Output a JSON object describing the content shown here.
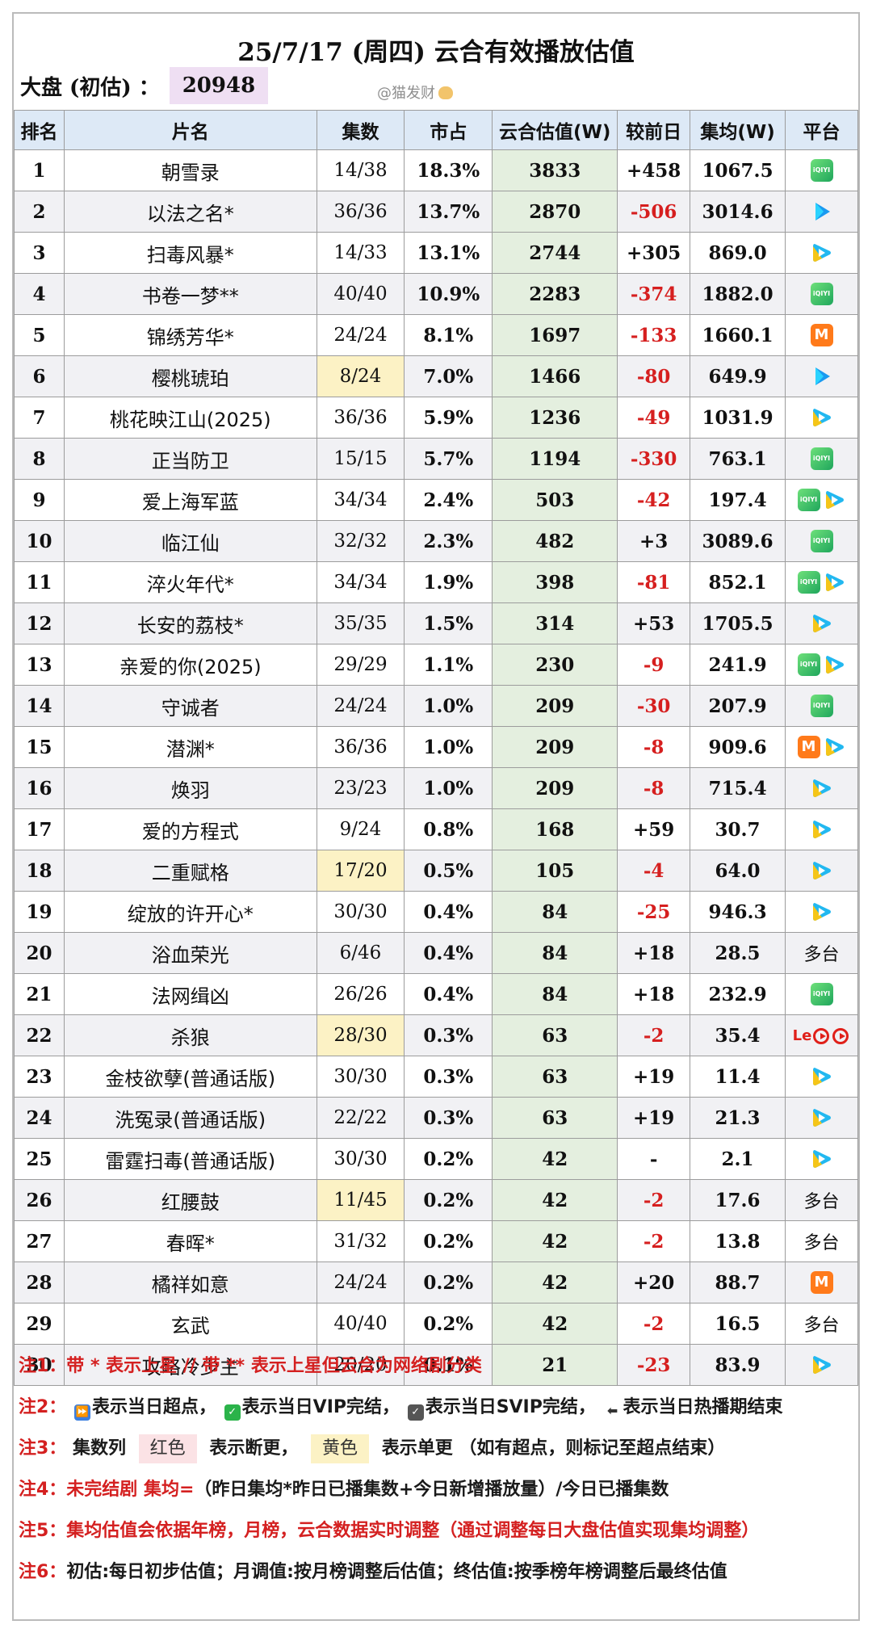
{
  "title": "25/7/17 (周四) 云合有效播放估值",
  "summary": {
    "label": "大盘 (初估) ：",
    "value": "20948"
  },
  "watermark": "@猫发财",
  "columns": [
    "排名",
    "片名",
    "集数",
    "市占",
    "云合估值(W)",
    "较前日",
    "集均(W)",
    "平台"
  ],
  "rows": [
    {
      "rank": "1",
      "name": "朝雪录",
      "episodes": "14/38",
      "share": "18.3%",
      "estimate": "3833",
      "change": "+458",
      "avg": "1067.5",
      "platform": [
        "iqiyi"
      ]
    },
    {
      "rank": "2",
      "name": "以法之名*",
      "episodes": "36/36",
      "share": "13.7%",
      "estimate": "2870",
      "change": "-506",
      "avg": "3014.6",
      "platform": [
        "youku"
      ]
    },
    {
      "rank": "3",
      "name": "扫毒风暴*",
      "episodes": "14/33",
      "share": "13.1%",
      "estimate": "2744",
      "change": "+305",
      "avg": "869.0",
      "platform": [
        "tencent"
      ]
    },
    {
      "rank": "4",
      "name": "书卷一梦**",
      "episodes": "40/40",
      "share": "10.9%",
      "estimate": "2283",
      "change": "-374",
      "avg": "1882.0",
      "platform": [
        "iqiyi"
      ]
    },
    {
      "rank": "5",
      "name": "锦绣芳华*",
      "episodes": "24/24",
      "share": "8.1%",
      "estimate": "1697",
      "change": "-133",
      "avg": "1660.1",
      "platform": [
        "mgtv"
      ]
    },
    {
      "rank": "6",
      "name": "樱桃琥珀",
      "episodes": "8/24",
      "episode_mark": "yellow",
      "share": "7.0%",
      "estimate": "1466",
      "change": "-80",
      "avg": "649.9",
      "platform": [
        "youku"
      ]
    },
    {
      "rank": "7",
      "name": "桃花映江山(2025)",
      "episodes": "36/36",
      "share": "5.9%",
      "estimate": "1236",
      "change": "-49",
      "avg": "1031.9",
      "platform": [
        "tencent"
      ]
    },
    {
      "rank": "8",
      "name": "正当防卫",
      "episodes": "15/15",
      "share": "5.7%",
      "estimate": "1194",
      "change": "-330",
      "avg": "763.1",
      "platform": [
        "iqiyi"
      ]
    },
    {
      "rank": "9",
      "name": "爱上海军蓝",
      "episodes": "34/34",
      "share": "2.4%",
      "estimate": "503",
      "change": "-42",
      "avg": "197.4",
      "platform": [
        "iqiyi",
        "tencent"
      ]
    },
    {
      "rank": "10",
      "name": "临江仙",
      "episodes": "32/32",
      "share": "2.3%",
      "estimate": "482",
      "change": "+3",
      "avg": "3089.6",
      "platform": [
        "iqiyi"
      ]
    },
    {
      "rank": "11",
      "name": "淬火年代*",
      "episodes": "34/34",
      "share": "1.9%",
      "estimate": "398",
      "change": "-81",
      "avg": "852.1",
      "platform": [
        "iqiyi",
        "tencent"
      ]
    },
    {
      "rank": "12",
      "name": "长安的荔枝*",
      "episodes": "35/35",
      "share": "1.5%",
      "estimate": "314",
      "change": "+53",
      "avg": "1705.5",
      "platform": [
        "tencent"
      ]
    },
    {
      "rank": "13",
      "name": "亲爱的你(2025)",
      "episodes": "29/29",
      "share": "1.1%",
      "estimate": "230",
      "change": "-9",
      "avg": "241.9",
      "platform": [
        "iqiyi",
        "tencent"
      ]
    },
    {
      "rank": "14",
      "name": "守诚者",
      "episodes": "24/24",
      "share": "1.0%",
      "estimate": "209",
      "change": "-30",
      "avg": "207.9",
      "platform": [
        "iqiyi"
      ]
    },
    {
      "rank": "15",
      "name": "潜渊*",
      "episodes": "36/36",
      "share": "1.0%",
      "estimate": "209",
      "change": "-8",
      "avg": "909.6",
      "platform": [
        "mgtv",
        "tencent"
      ]
    },
    {
      "rank": "16",
      "name": "焕羽",
      "episodes": "23/23",
      "share": "1.0%",
      "estimate": "209",
      "change": "-8",
      "avg": "715.4",
      "platform": [
        "tencent"
      ]
    },
    {
      "rank": "17",
      "name": "爱的方程式",
      "episodes": "9/24",
      "share": "0.8%",
      "estimate": "168",
      "change": "+59",
      "avg": "30.7",
      "platform": [
        "tencent"
      ]
    },
    {
      "rank": "18",
      "name": "二重赋格",
      "episodes": "17/20",
      "episode_mark": "yellow",
      "share": "0.5%",
      "estimate": "105",
      "change": "-4",
      "avg": "64.0",
      "platform": [
        "tencent"
      ]
    },
    {
      "rank": "19",
      "name": "绽放的许开心*",
      "episodes": "30/30",
      "share": "0.4%",
      "estimate": "84",
      "change": "-25",
      "avg": "946.3",
      "platform": [
        "tencent"
      ]
    },
    {
      "rank": "20",
      "name": "浴血荣光",
      "episodes": "6/46",
      "share": "0.4%",
      "estimate": "84",
      "change": "+18",
      "avg": "28.5",
      "platform": [
        "text"
      ],
      "platform_text": "多台"
    },
    {
      "rank": "21",
      "name": "法网缉凶",
      "episodes": "26/26",
      "share": "0.4%",
      "estimate": "84",
      "change": "+18",
      "avg": "232.9",
      "platform": [
        "iqiyi"
      ]
    },
    {
      "rank": "22",
      "name": "杀狼",
      "episodes": "28/30",
      "episode_mark": "yellow",
      "share": "0.3%",
      "estimate": "63",
      "change": "-2",
      "avg": "35.4",
      "platform": [
        "letv"
      ]
    },
    {
      "rank": "23",
      "name": "金枝欲孽(普通话版)",
      "episodes": "30/30",
      "share": "0.3%",
      "estimate": "63",
      "change": "+19",
      "avg": "11.4",
      "platform": [
        "tencent"
      ]
    },
    {
      "rank": "24",
      "name": "洗冤录(普通话版)",
      "episodes": "22/22",
      "share": "0.3%",
      "estimate": "63",
      "change": "+19",
      "avg": "21.3",
      "platform": [
        "tencent"
      ]
    },
    {
      "rank": "25",
      "name": "雷霆扫毒(普通话版)",
      "episodes": "30/30",
      "share": "0.2%",
      "estimate": "42",
      "change": "-",
      "avg": "2.1",
      "platform": [
        "tencent"
      ]
    },
    {
      "rank": "26",
      "name": "红腰鼓",
      "episodes": "11/45",
      "episode_mark": "yellow",
      "share": "0.2%",
      "estimate": "42",
      "change": "-2",
      "avg": "17.6",
      "platform": [
        "text"
      ],
      "platform_text": "多台"
    },
    {
      "rank": "27",
      "name": "春晖*",
      "episodes": "31/32",
      "share": "0.2%",
      "estimate": "42",
      "change": "-2",
      "avg": "13.8",
      "platform": [
        "text"
      ],
      "platform_text": "多台"
    },
    {
      "rank": "28",
      "name": "橘祥如意",
      "episodes": "24/24",
      "share": "0.2%",
      "estimate": "42",
      "change": "+20",
      "avg": "88.7",
      "platform": [
        "mgtv"
      ]
    },
    {
      "rank": "29",
      "name": "玄武",
      "episodes": "40/40",
      "share": "0.2%",
      "estimate": "42",
      "change": "-2",
      "avg": "16.5",
      "platform": [
        "text"
      ],
      "platform_text": "多台"
    },
    {
      "rank": "30",
      "name": "攻略冷少主",
      "episodes": "20/20",
      "share": "0.1%",
      "estimate": "21",
      "change": "-23",
      "avg": "83.9",
      "platform": [
        "tencent"
      ]
    }
  ],
  "icons": {
    "iqiyi": "iqiyi-icon",
    "youku": "youku-icon",
    "tencent": "tencent-video-icon",
    "mgtv": "mgtv-icon",
    "letv": "letv-icon"
  },
  "colors": {
    "negative": "#d61f1f",
    "estimate_bg": "#e4efdf",
    "header_bg": "#dde9f6",
    "yellow_mark": "#fcf2c5",
    "red_mark": "#fbe2e5"
  },
  "notes": {
    "n1": "注1：带 * 表示上星 // 带 ** 表示上星但云合为网络剧分类",
    "n2_prefix": "注2：",
    "n2_a": "表示当日超点，",
    "n2_b": "表示当日VIP完结，",
    "n2_c": "表示当日SVIP完结，",
    "n2_d": "表示当日热播期结束",
    "n2_end_glyph": "END",
    "n3_prefix": "注3：",
    "n3_col": "集数列",
    "n3_red": "红色",
    "n3_mid": "表示断更，",
    "n3_yellow": "黄色",
    "n3_tail": "表示单更 （如有超点，则标记至超点结束）",
    "n4_prefix": "注4：未完结剧 集均=",
    "n4_body": "（昨日集均*昨日已播集数+今日新增播放量）/今日已播集数",
    "n5": "注5：集均估值会依据年榜，月榜，云合数据实时调整（通过调整每日大盘估值实现集均调整）",
    "n6_prefix": "注6：",
    "n6_body": "初估:每日初步估值；月调值:按月榜调整后估值；终估值:按季榜年榜调整后最终估值"
  }
}
